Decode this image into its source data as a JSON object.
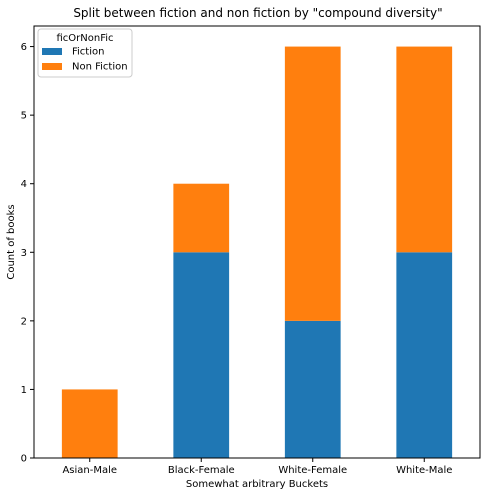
{
  "chart_data": {
    "type": "bar",
    "stacked": true,
    "title": "Split between fiction and non fiction by \"compound diversity\"",
    "xlabel": "Somewhat arbitrary Buckets",
    "ylabel": "Count of books",
    "categories": [
      "Asian-Male",
      "Black-Female",
      "White-Female",
      "White-Male"
    ],
    "series": [
      {
        "name": "Fiction",
        "values": [
          0,
          3,
          2,
          3
        ],
        "color": "#1f77b4"
      },
      {
        "name": "Non Fiction",
        "values": [
          1,
          1,
          4,
          3
        ],
        "color": "#ff7f0e"
      }
    ],
    "ylim": [
      0,
      6.3
    ],
    "yticks": [
      0,
      1,
      2,
      3,
      4,
      5,
      6
    ],
    "grid": false,
    "legend": {
      "title": "ficOrNonFic",
      "placement": "top-left"
    }
  }
}
